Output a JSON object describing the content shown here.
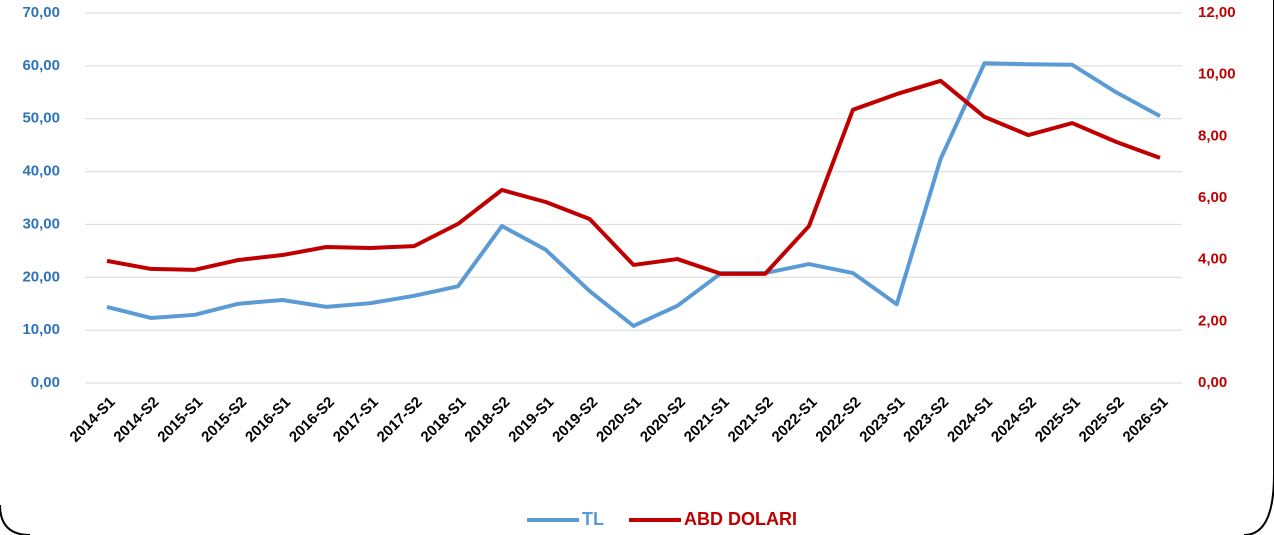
{
  "chart_data": {
    "type": "line",
    "categories": [
      "2014-S1",
      "2014-S2",
      "2015-S1",
      "2015-S2",
      "2016-S1",
      "2016-S2",
      "2017-S1",
      "2017-S2",
      "2018-S1",
      "2018-S2",
      "2019-S1",
      "2019-S2",
      "2020-S1",
      "2020-S2",
      "2021-S1",
      "2021-S2",
      "2022-S1",
      "2022-S2",
      "2023-S1",
      "2023-S2",
      "2024-S1",
      "2024-S2",
      "2025-S1",
      "2025-S2",
      "2026-S1"
    ],
    "series": [
      {
        "name": "TL",
        "color": "#5b9bd5",
        "values": [
          14.4,
          12.3,
          12.9,
          15.0,
          15.7,
          14.4,
          15.1,
          16.5,
          18.3,
          29.7,
          25.2,
          17.4,
          10.8,
          14.6,
          20.8,
          20.8,
          22.5,
          20.8,
          14.9,
          42.4,
          60.5,
          60.3,
          60.2,
          55.0,
          50.5
        ]
      },
      {
        "name": "ABD DOLARI",
        "color": "#c00000",
        "axis": "y2",
        "values": [
          3.96,
          3.7,
          3.67,
          3.99,
          4.15,
          4.41,
          4.38,
          4.44,
          5.16,
          6.26,
          5.87,
          5.32,
          3.83,
          4.02,
          3.54,
          3.54,
          5.09,
          8.86,
          9.37,
          9.8,
          8.63,
          8.04,
          8.43,
          7.82,
          7.3
        ]
      }
    ],
    "ylim": [
      0,
      70
    ],
    "yticks": [
      {
        "value": 0,
        "label": "0,00"
      },
      {
        "value": 10,
        "label": "10,00"
      },
      {
        "value": 20,
        "label": "20,00"
      },
      {
        "value": 30,
        "label": "30,00"
      },
      {
        "value": 40,
        "label": "40,00"
      },
      {
        "value": 50,
        "label": "50,00"
      },
      {
        "value": 60,
        "label": "60,00"
      },
      {
        "value": 70,
        "label": "70,00"
      }
    ],
    "y2lim": [
      0,
      12
    ],
    "y2ticks": [
      {
        "value": 0,
        "label": "0,00"
      },
      {
        "value": 2,
        "label": "2,00"
      },
      {
        "value": 4,
        "label": "4,00"
      },
      {
        "value": 6,
        "label": "6,00"
      },
      {
        "value": 8,
        "label": "8,00"
      },
      {
        "value": 10,
        "label": "10,00"
      },
      {
        "value": 12,
        "label": "12,00"
      }
    ],
    "grid": true,
    "legend": "bottom",
    "ytick_color": "#2e75b6",
    "y2tick_color": "#c00000"
  }
}
